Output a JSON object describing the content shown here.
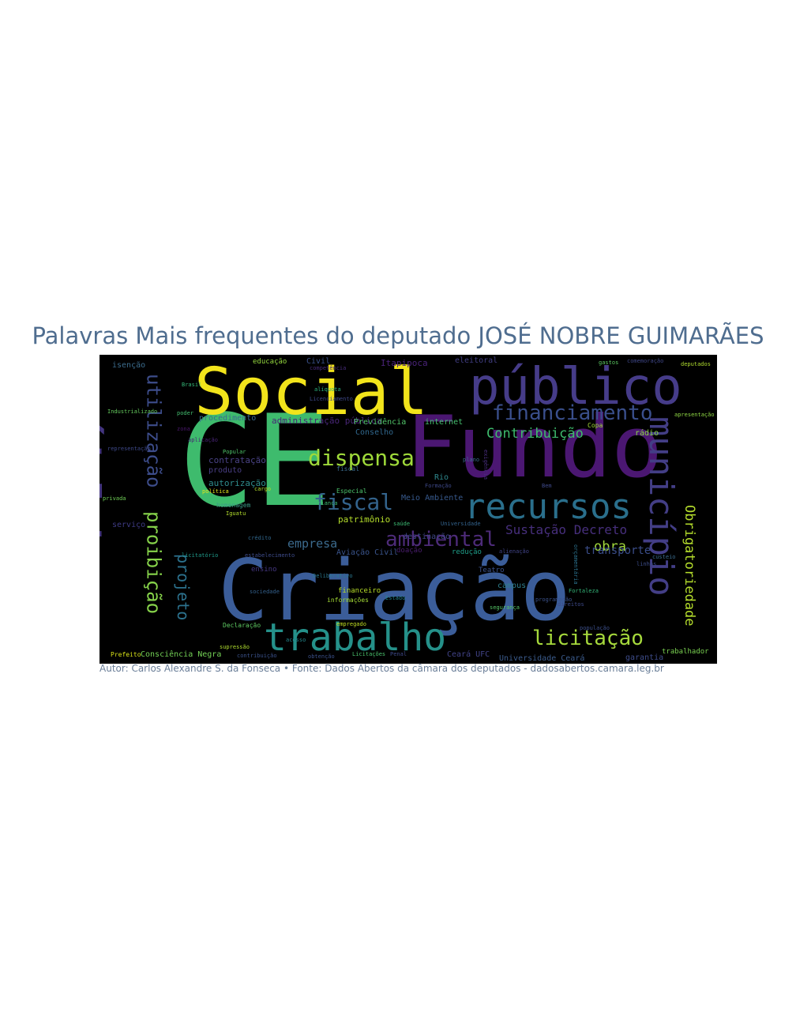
{
  "title": "Palavras Mais frequentes do deputado JOSÉ NOBRE GUIMARÃES",
  "caption": "Autor: Carlos Alexandre S. da Fonseca • Fonte: Dados Abertos da câmara dos deputados - dadosabertos.camara.leg.br",
  "words": [
    {
      "text": "CE",
      "color": "#3ebb6d"
    },
    {
      "text": "Fundo",
      "color": "#4b1772"
    },
    {
      "text": "Criação",
      "color": "#3b5d99"
    },
    {
      "text": "Social",
      "color": "#f2e41b"
    },
    {
      "text": "público",
      "color": "#463c89"
    },
    {
      "text": "pública",
      "color": "#44367f"
    },
    {
      "text": "recursos",
      "color": "#2a6f8c"
    },
    {
      "text": "trabalho",
      "color": "#25918a"
    },
    {
      "text": "município",
      "color": "#433e86"
    },
    {
      "text": "financiamento",
      "color": "#3a4f8c"
    },
    {
      "text": "proibição",
      "color": "#86d24a"
    },
    {
      "text": "utilização",
      "color": "#3d4d8b"
    },
    {
      "text": "dispensa",
      "color": "#9fda3a"
    },
    {
      "text": "fiscal",
      "color": "#33638c"
    },
    {
      "text": "ambiental",
      "color": "#4d2b79"
    },
    {
      "text": "licitação",
      "color": "#a6d93c"
    },
    {
      "text": "projeto",
      "color": "#2c728e"
    },
    {
      "text": "Obrigatoriedade",
      "color": "#b4dc2c"
    },
    {
      "text": "Contribuição",
      "color": "#3ebb6d"
    },
    {
      "text": "Sustação Decreto",
      "color": "#472f7d"
    },
    {
      "text": "empresa",
      "color": "#3c6b8e"
    },
    {
      "text": "obra",
      "color": "#a3d93d"
    },
    {
      "text": "transporte",
      "color": "#3b4e8b"
    },
    {
      "text": "patrimônio",
      "color": "#b5de2b"
    },
    {
      "text": "contratação",
      "color": "#4a4386"
    },
    {
      "text": "autorização",
      "color": "#2f8c8c"
    },
    {
      "text": "administração pública",
      "color": "#482677"
    },
    {
      "text": "Previdência",
      "color": "#52c569"
    },
    {
      "text": "Conselho",
      "color": "#31688e"
    },
    {
      "text": "Consciência Negra",
      "color": "#73d055"
    },
    {
      "text": "campus",
      "color": "#2e7f8e"
    },
    {
      "text": "Aviação Civil",
      "color": "#3a548c"
    },
    {
      "text": "Universidade Ceará",
      "color": "#3b5b8c"
    },
    {
      "text": "trabalhador",
      "color": "#7ad151"
    },
    {
      "text": "produto",
      "color": "#4a3f86"
    },
    {
      "text": "homenagem",
      "color": "#3a9a86"
    },
    {
      "text": "serviço",
      "color": "#3f3c85"
    },
    {
      "text": "isenção",
      "color": "#3c6d8e"
    },
    {
      "text": "Itapipoca",
      "color": "#4a237a"
    },
    {
      "text": "Civil",
      "color": "#3b528b"
    },
    {
      "text": "eleitoral",
      "color": "#423f85"
    },
    {
      "text": "internet",
      "color": "#46c06f"
    },
    {
      "text": "educação",
      "color": "#95d83e"
    },
    {
      "text": "destinação",
      "color": "#3f4788"
    },
    {
      "text": "rádio",
      "color": "#8bd646"
    },
    {
      "text": "ensino",
      "color": "#453781"
    },
    {
      "text": "Rio",
      "color": "#2f898e"
    },
    {
      "text": "Teatro",
      "color": "#3b528b"
    },
    {
      "text": "procedimento",
      "color": "#3b6c8e"
    },
    {
      "text": "fiscal",
      "color": "#3b6c8e"
    },
    {
      "text": "financeiro",
      "color": "#b8de29"
    },
    {
      "text": "informações",
      "color": "#a5db36"
    },
    {
      "text": "Ceará UFC",
      "color": "#414387"
    },
    {
      "text": "garantia",
      "color": "#3e4c8a"
    },
    {
      "text": "Meio Ambiente",
      "color": "#37598c"
    },
    {
      "text": "redução",
      "color": "#1f9e89"
    },
    {
      "text": "doação",
      "color": "#4a1d6e"
    },
    {
      "text": "população",
      "color": "#3c4f8a"
    },
    {
      "text": "Prefeito",
      "color": "#d8e219"
    },
    {
      "text": "Estado",
      "color": "#25848e"
    },
    {
      "text": "Especial",
      "color": "#4cc26c"
    },
    {
      "text": "privada",
      "color": "#70cf57"
    },
    {
      "text": "apresentação",
      "color": "#8fd744"
    },
    {
      "text": "representação",
      "color": "#3e4989"
    },
    {
      "text": "Copa",
      "color": "#a2da37"
    },
    {
      "text": "gastos",
      "color": "#5cc863"
    },
    {
      "text": "deputados",
      "color": "#b0dd2f"
    },
    {
      "text": "Brasil",
      "color": "#35b779"
    },
    {
      "text": "alíquota",
      "color": "#2db27d"
    },
    {
      "text": "comemoração",
      "color": "#3f4788"
    },
    {
      "text": "Industrializado",
      "color": "#65cb5e"
    },
    {
      "text": "poder",
      "color": "#44bf70"
    },
    {
      "text": "cargo",
      "color": "#b5de2b"
    },
    {
      "text": "Popular",
      "color": "#4fc46a"
    },
    {
      "text": "política",
      "color": "#e5e419"
    },
    {
      "text": "Iguatu",
      "color": "#b2dd2d"
    },
    {
      "text": "saúde",
      "color": "#3dbc74"
    },
    {
      "text": "Universidade",
      "color": "#33638d"
    },
    {
      "text": "crédito",
      "color": "#31688e"
    },
    {
      "text": "Licenciamento",
      "color": "#3e4989"
    },
    {
      "text": "programação",
      "color": "#3b528b"
    },
    {
      "text": "alienação",
      "color": "#414487"
    },
    {
      "text": "exigência",
      "color": "#472d7b"
    },
    {
      "text": "Deliberativo",
      "color": "#2a788e"
    },
    {
      "text": "segurança",
      "color": "#56c667"
    },
    {
      "text": "estabelecimento",
      "color": "#3e4c8a"
    },
    {
      "text": "Declaração",
      "color": "#5ec962"
    },
    {
      "text": "empregado",
      "color": "#c2df23"
    },
    {
      "text": "contribuição",
      "color": "#3b528b"
    },
    {
      "text": "obtenção",
      "color": "#3b528b"
    },
    {
      "text": "Penal",
      "color": "#3e4a89"
    },
    {
      "text": "competência",
      "color": "#472c7a"
    },
    {
      "text": "aplicação",
      "color": "#482475"
    },
    {
      "text": "licitatório",
      "color": "#1f9a8a"
    },
    {
      "text": "Licitações",
      "color": "#4ac16d"
    },
    {
      "text": "criança",
      "color": "#3dbc74"
    },
    {
      "text": "sociedade",
      "color": "#34618d"
    },
    {
      "text": "direitos",
      "color": "#3e4a89"
    },
    {
      "text": "Formação",
      "color": "#3e4989"
    },
    {
      "text": "Fortaleza",
      "color": "#34b679"
    },
    {
      "text": "Bem",
      "color": "#3e4989"
    },
    {
      "text": "supressão",
      "color": "#b0dd2f"
    },
    {
      "text": "orçamentária",
      "color": "#2c728e"
    },
    {
      "text": "zona",
      "color": "#4a186d"
    },
    {
      "text": "custeio",
      "color": "#3b6c8e"
    },
    {
      "text": "plano",
      "color": "#3b6c8e"
    },
    {
      "text": "linhas",
      "color": "#3d4d8a"
    },
    {
      "text": "acesso",
      "color": "#23888e"
    }
  ]
}
